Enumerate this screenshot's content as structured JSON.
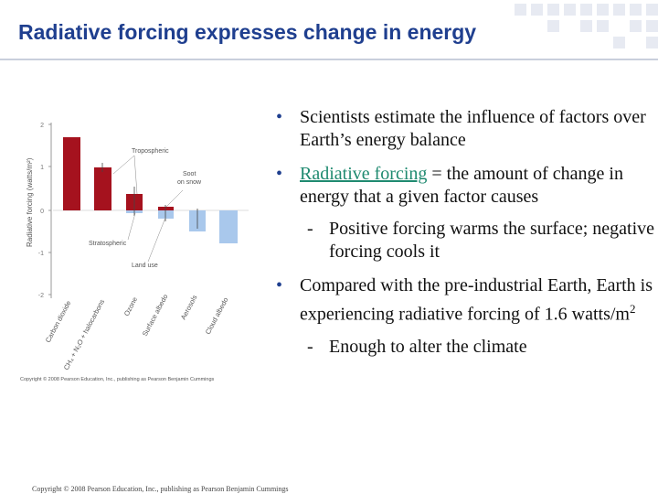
{
  "slide": {
    "title": "Radiative forcing expresses change in energy"
  },
  "figure": {
    "y_axis_label": "Radiative forcing (watts/m²)",
    "y_ticks": [
      "2",
      "1",
      "0",
      "-1",
      "-2"
    ],
    "annotations": {
      "tropospheric": "Tropospheric",
      "soot_on_snow_1": "Soot",
      "soot_on_snow_2": "on snow",
      "stratospheric": "Stratospheric",
      "land_use": "Land use"
    },
    "categories": [
      "Carbon dioxide",
      "CH₄ + N₂O + halocarbons",
      "Ozone",
      "Surface albedo",
      "Aerosols",
      "Cloud albedo"
    ],
    "copyright": "Copyright © 2008 Pearson Education, Inc., publishing as Pearson Benjamin Cummings",
    "colors": {
      "positive": "#a5121e",
      "negative": "#a9c8ec"
    }
  },
  "bullets": {
    "b1": "Scientists estimate the influence of factors over Earth’s energy balance",
    "b2_term": "Radiative forcing",
    "b2_rest": " = the amount of change in energy that a given factor causes",
    "b2_sub": "Positive forcing warms the surface; negative forcing cools it",
    "b3_text": "Compared with the pre-industrial Earth, Earth is experiencing radiative forcing of 1.6 watts/m",
    "b3_sup": "2",
    "b3_sub": "Enough to alter the climate",
    "bullet_char": "•",
    "dash_char": "-"
  },
  "footer": {
    "copyright": "Copyright © 2008 Pearson Education, Inc., publishing as Pearson Benjamin Cummings"
  },
  "theme": {
    "title_color": "#1f3f8f",
    "term_color": "#1f8a70"
  }
}
